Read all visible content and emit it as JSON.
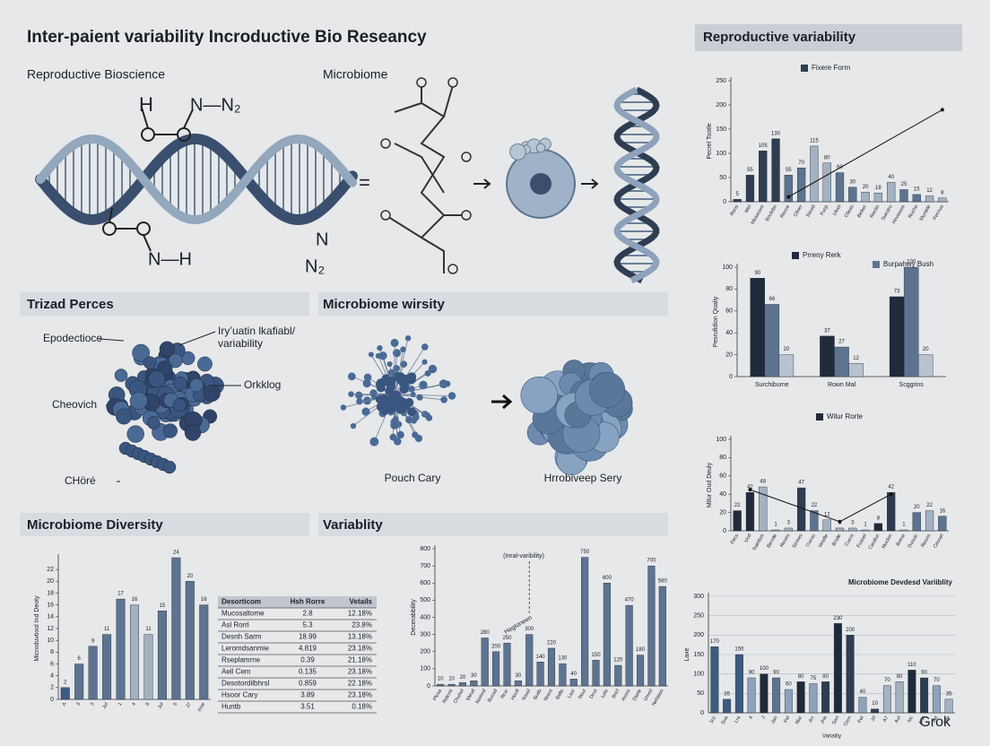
{
  "title": "Inter-paient variability Incroductive Bio Reseancy",
  "sections": [
    "Reproductive Bioscience",
    "Microbiome",
    "Trizad Perces",
    "Microbiome wirsity",
    "Microbiome Diversity",
    "Variablity",
    "Reproductive variability"
  ],
  "chem_labels": [
    "H",
    "N—N₂",
    "N—H",
    "N",
    "N₂",
    "="
  ],
  "protein_labels": [
    "Epodectioce",
    "Iryʼuatin lkafiabl/",
    "variability",
    "Cheovich",
    "Orkklog",
    "CHöré"
  ],
  "microbe_labels": [
    "Pouch Cary",
    "Hrrobiveep Sery"
  ],
  "table": {
    "header": [
      "Desorticom",
      "Hsh Rorre",
      "Vetails"
    ],
    "rows": [
      [
        "Mucosaltome",
        "2.8",
        "12.18%"
      ],
      [
        "Asl Rorrl",
        "5.3",
        "23.8%"
      ],
      [
        "Desnh Sarm",
        "18.99",
        "13.18%"
      ],
      [
        "Leromdsanmie",
        "4.819",
        "23.18%"
      ],
      [
        "Rseplamrne",
        "0.39",
        "21.18%"
      ],
      [
        "Aell Cem",
        "0.135",
        "23.18%"
      ],
      [
        "Desotordilbhrsl",
        "0.859",
        "22.18%"
      ],
      [
        "Hsoor Cary",
        "3.89",
        "23.18%"
      ],
      [
        "Huntb",
        "3.51",
        "0.18%"
      ]
    ]
  },
  "chart_data": [
    {
      "type": "bar",
      "series_name": "Fixere Form",
      "y_label": "Pecrel Tootle",
      "categories": [
        "Rons",
        "Wel",
        "Mosacom",
        "Bnclobn",
        "Rexce",
        "Cilner",
        "Siovid",
        "Fucp",
        "Ulsot",
        "Clieas",
        "Bicker",
        "Rectin",
        "Suestru",
        "Hnvocom",
        "Rucho",
        "Muniele",
        "Fecnus"
      ],
      "values": [
        5,
        55,
        105,
        130,
        55,
        70,
        115,
        80,
        60,
        30,
        20,
        18,
        40,
        25,
        15,
        12,
        8
      ],
      "colors": [
        "#2f3d52",
        "#2f3d52",
        "#2f3d52",
        "#2f3d52",
        "#5d7490",
        "#5d7490",
        "#a3b1c1",
        "#a3b1c1",
        "#5d7490",
        "#5d7490",
        "#a3b1c1",
        "#a3b1c1",
        "#a3b1c1",
        "#5d7490",
        "#5d7490",
        "#a3b1c1",
        "#a3b1c1"
      ],
      "trend": [
        null,
        null,
        null,
        null,
        10,
        null,
        null,
        null,
        null,
        null,
        null,
        null,
        null,
        null,
        null,
        null,
        190
      ],
      "ylim": [
        0,
        250
      ],
      "yticks": [
        0,
        50,
        100,
        150,
        200,
        250
      ],
      "grid": false
    },
    {
      "type": "grouped_bar",
      "y_label": "Pesrufidion Qoaliy",
      "categories": [
        "Surchiburne",
        "Rown Mal",
        "Scggrins"
      ],
      "series": [
        {
          "name": "Prreny Rerk",
          "color": "#1f2a3a",
          "values": [
            90,
            37,
            73
          ]
        },
        {
          "name": "Burpahwy Bush",
          "color": "#5d7490",
          "values": [
            66,
            27,
            100
          ]
        },
        {
          "name": null,
          "color": "#b8c3cf",
          "values": [
            20,
            12,
            20
          ]
        }
      ],
      "ylim": [
        0,
        100
      ],
      "yticks": [
        0,
        20,
        40,
        60,
        80,
        100
      ],
      "grid": false
    },
    {
      "type": "bar",
      "series_name": "Wilur Rorte",
      "y_label": "Milur Oud Deuly",
      "categories": [
        "Fecs",
        "Ucd",
        "Saedsm",
        "Bicnde",
        "Reues",
        "Sirmes",
        "Cucsu",
        "Vesdle",
        "Brsde",
        "Cucra",
        "Fusoel",
        "Cacdun",
        "Muclon",
        "Brece",
        "Dusuic",
        "Reuns",
        "Cecoel"
      ],
      "values": [
        22,
        42,
        48,
        1,
        3,
        47,
        22,
        12,
        3,
        3,
        1,
        8,
        42,
        1,
        20,
        22,
        16
      ],
      "colors": [
        "#1f2a3a",
        "#1f2a3a",
        "#a3b1c1",
        "#a3b1c1",
        "#a3b1c1",
        "#2f3d52",
        "#5d7490",
        "#a3b1c1",
        "#a3b1c1",
        "#a3b1c1",
        "#a3b1c1",
        "#1f2a3a",
        "#2f3d52",
        "#a3b1c1",
        "#5d7490",
        "#a3b1c1",
        "#5d7490"
      ],
      "trend": [
        null,
        45,
        null,
        null,
        null,
        null,
        null,
        null,
        10,
        null,
        null,
        null,
        40,
        null,
        null,
        null,
        null
      ],
      "ylim": [
        0,
        100
      ],
      "yticks": [
        0,
        20,
        40,
        60,
        80,
        100
      ],
      "grid": false
    },
    {
      "type": "bar",
      "title": "Microbiome Devdesd Variiblity",
      "y_label": "Laxe",
      "x_label": "Variality",
      "categories": [
        "1cc",
        "Sna",
        "Lra",
        "4",
        "J",
        "Jan",
        "Fel",
        "Mar",
        "Arr",
        "Jna",
        "Sart",
        "Corn",
        "Fet",
        "Jrl",
        "A7",
        "Aul",
        "Ioc",
        "Ann",
        "Jot",
        "Ute"
      ],
      "values": [
        170,
        35,
        150,
        90,
        100,
        90,
        60,
        80,
        75,
        80,
        230,
        200,
        40,
        10,
        70,
        80,
        110,
        90,
        70,
        35
      ],
      "colors": [
        "#3d5a80",
        "#3d5a80",
        "#3d5a80",
        "#8ea2bb",
        "#1f2a3a",
        "#5d7490",
        "#8ea2bb",
        "#1f2a3a",
        "#8ea2bb",
        "#2f3d52",
        "#1f2a3a",
        "#2f3d52",
        "#8ea2bb",
        "#2f3d52",
        "#a3b1c1",
        "#a3b1c1",
        "#1f2a3a",
        "#2f3d52",
        "#8ea2bb",
        "#a3b1c1"
      ],
      "ylim": [
        0,
        300
      ],
      "yticks": [
        0,
        50,
        100,
        150,
        200,
        250,
        300
      ],
      "grid": true
    },
    {
      "type": "bar",
      "y_label": "Microduvtiool Ind Deoty",
      "categories": [
        "A",
        "3",
        "3",
        "Jul",
        "1",
        "4",
        "8",
        "Jul",
        "6",
        "J7",
        "Inne"
      ],
      "values": [
        2,
        6,
        9,
        11,
        17,
        16,
        11,
        15,
        24,
        20,
        16
      ],
      "colors": [
        "#3d5a80",
        "#5d7490",
        "#5d7490",
        "#5d7490",
        "#5d7490",
        "#a3b1c1",
        "#a3b1c1",
        "#5d7490",
        "#5d7490",
        "#5d7490",
        "#5d7490"
      ],
      "ylim": [
        0,
        24
      ],
      "yticks": [
        0,
        2,
        4,
        6,
        8,
        10,
        12,
        14,
        16,
        18,
        20,
        22
      ],
      "grid": false
    },
    {
      "type": "bar",
      "y_label": "Decerabbility",
      "annotations": [
        "(Inral-varibility)",
        "Hegtoneen"
      ],
      "categories": [
        "Plcaa",
        "Ridcmt",
        "Chuhol",
        "Meud",
        "Nomnd",
        "Buusd",
        "Rcsr",
        "Honfl",
        "Sosol",
        "Buds",
        "Ncent",
        "Bidlo",
        "Lsor",
        "Nout",
        "Dcut",
        "Lelo",
        "Bncl",
        "Arons",
        "Dsele",
        "Unvol",
        "Nehbion"
      ],
      "values": [
        10,
        10,
        20,
        30,
        280,
        200,
        250,
        30,
        300,
        140,
        220,
        130,
        40,
        750,
        150,
        600,
        120,
        470,
        180,
        700,
        580
      ],
      "colors": [
        "#5d7490",
        "#5d7490",
        "#5d7490",
        "#5d7490",
        "#5d7490",
        "#5d7490",
        "#5d7490",
        "#5d7490",
        "#5d7490",
        "#5d7490",
        "#5d7490",
        "#5d7490",
        "#5d7490",
        "#5d7490",
        "#5d7490",
        "#5d7490",
        "#5d7490",
        "#5d7490",
        "#5d7490",
        "#5d7490",
        "#5d7490"
      ],
      "ylim": [
        0,
        800
      ],
      "yticks": [
        0,
        100,
        200,
        300,
        400,
        500,
        600,
        700,
        800
      ],
      "grid": false
    }
  ],
  "watermark": "Grok"
}
